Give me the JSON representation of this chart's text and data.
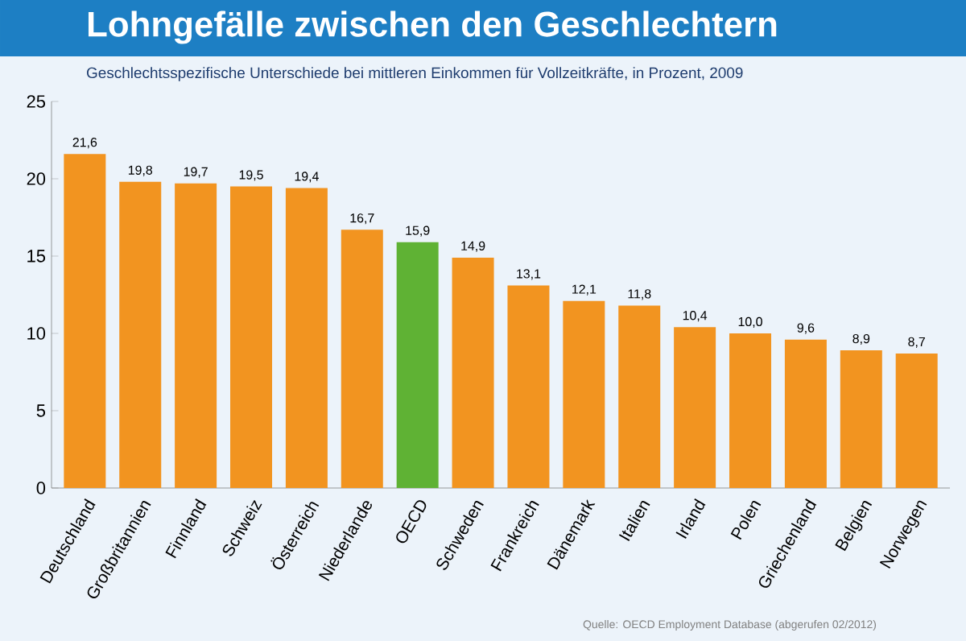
{
  "chart_data": {
    "type": "bar",
    "title": "Lohngefälle zwischen den Geschlechtern",
    "subtitle": "Geschlechtsspezifische Unterschiede bei mittleren Einkommen für Vollzeitkräfte, in Prozent, 2009",
    "categories": [
      "Deutschland",
      "Großbritannien",
      "Finnland",
      "Schweiz",
      "Österreich",
      "Niederlande",
      "OECD",
      "Schweden",
      "Frankreich",
      "Dänemark",
      "Italien",
      "Irland",
      "Polen",
      "Griechenland",
      "Belgien",
      "Norwegen"
    ],
    "values": [
      21.6,
      19.8,
      19.7,
      19.5,
      19.4,
      16.7,
      15.9,
      14.9,
      13.1,
      12.1,
      11.8,
      10.4,
      10.0,
      9.6,
      8.9,
      8.7
    ],
    "value_labels": [
      "21,6",
      "19,8",
      "19,7",
      "19,5",
      "19,4",
      "16,7",
      "15,9",
      "14,9",
      "13,1",
      "12,1",
      "11,8",
      "10,4",
      "10,0",
      "9,6",
      "8,9",
      "8,7"
    ],
    "colors": [
      "#f29420",
      "#f29420",
      "#f29420",
      "#f29420",
      "#f29420",
      "#f29420",
      "#5fb234",
      "#f29420",
      "#f29420",
      "#f29420",
      "#f29420",
      "#f29420",
      "#f29420",
      "#f29420",
      "#f29420",
      "#f29420"
    ],
    "ylim": [
      0,
      25
    ],
    "yticks": [
      0,
      5,
      10,
      15,
      20,
      25
    ],
    "annotations": [
      "Quelle: OECD Employment Database (abgerufen 02/2012)"
    ]
  }
}
